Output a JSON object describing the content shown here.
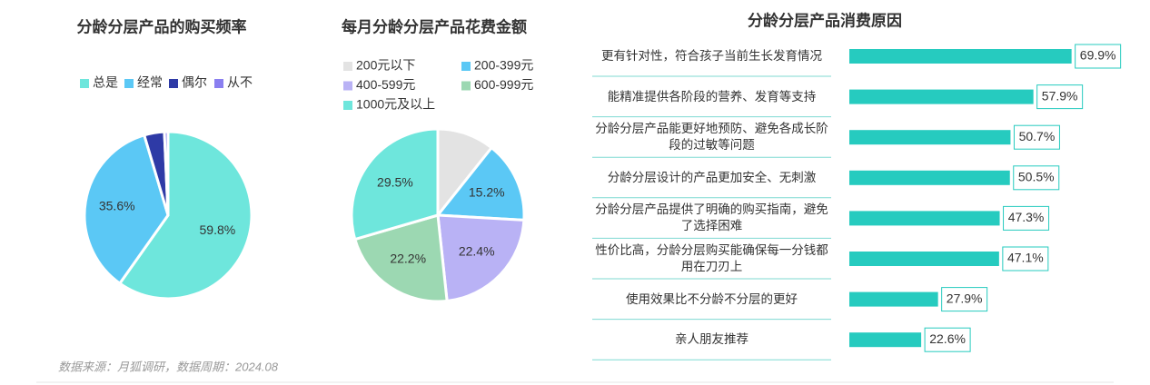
{
  "chart_data": [
    {
      "type": "pie",
      "title": "分龄分层产品的购买频率",
      "categories": [
        "总是",
        "经常",
        "偶尔",
        "从不"
      ],
      "values": [
        59.8,
        35.6,
        3.9,
        0.7
      ],
      "value_labels": [
        "59.8%",
        "35.6%",
        null,
        null
      ],
      "colors": [
        "#6ee6dc",
        "#5bc8f5",
        "#2e3aa6",
        "#8a7ff0"
      ],
      "legend": "top"
    },
    {
      "type": "pie",
      "title": "每月分龄分层产品花费金额",
      "categories": [
        "200元以下",
        "200-399元",
        "400-599元",
        "600-999元",
        "1000元及以上"
      ],
      "values": [
        10.7,
        15.2,
        22.4,
        22.2,
        29.5
      ],
      "value_labels": [
        null,
        "15.2%",
        "22.4%",
        "22.2%",
        "29.5%"
      ],
      "colors": [
        "#e3e3e3",
        "#5bc8f5",
        "#b9b2f5",
        "#9cd8b2",
        "#6ee6dc"
      ],
      "legend": "top"
    },
    {
      "type": "bar",
      "orientation": "horizontal",
      "title": "分龄分层产品消费原因",
      "categories": [
        "更有针对性，符合孩子当前生长发育情况",
        "能精准提供各阶段的营养、发育等支持",
        "分龄分层产品能更好地预防、避免各成长阶段的过敏等问题",
        "分龄分层设计的产品更加安全、无刺激",
        "分龄分层产品提供了明确的购买指南，避免了选择困难",
        "性价比高，分龄分层购买能确保每一分钱都用在刀刃上",
        "使用效果比不分龄不分层的更好",
        "亲人朋友推荐"
      ],
      "values": [
        69.9,
        57.9,
        50.7,
        50.5,
        47.3,
        47.1,
        27.9,
        22.6
      ],
      "value_labels": [
        "69.9%",
        "57.9%",
        "50.7%",
        "50.5%",
        "47.3%",
        "47.1%",
        "27.9%",
        "22.6%"
      ],
      "color": "#26cbbf"
    }
  ],
  "footer": {
    "source": "数据来源：月狐调研，数据周期：2024.08"
  }
}
